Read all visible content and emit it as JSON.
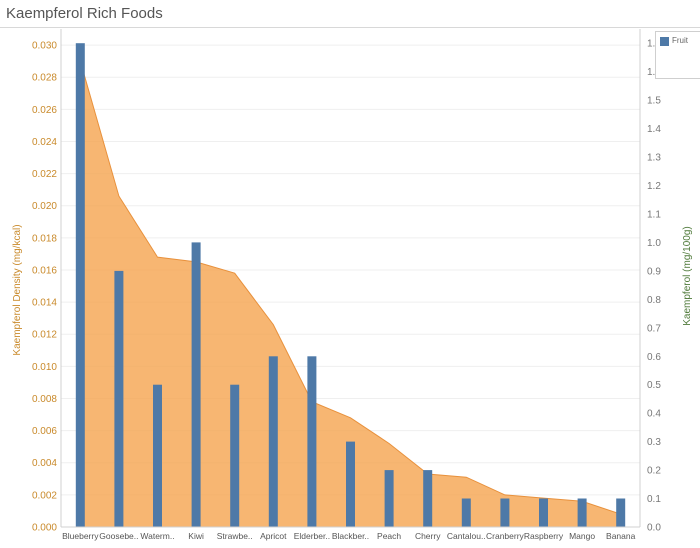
{
  "chart_data": {
    "type": "bar",
    "title": "Kaempferol Rich Foods",
    "categories": [
      "Blueberry",
      "Goosebe..",
      "Waterm..",
      "Kiwi",
      "Strawbe..",
      "Apricot",
      "Elderber..",
      "Blackber..",
      "Peach",
      "Cherry",
      "Cantalou..",
      "Cranberry",
      "Raspberry",
      "Mango",
      "Banana"
    ],
    "ylabel_left": "Kaempferol Density (mg/kcal)",
    "ylabel_right": "Kaempferol (mg/100g)",
    "ylim_left": [
      0,
      0.031
    ],
    "ylim_right": [
      0,
      1.75
    ],
    "yticks_left": [
      "0.000",
      "0.002",
      "0.004",
      "0.006",
      "0.008",
      "0.010",
      "0.012",
      "0.014",
      "0.016",
      "0.018",
      "0.020",
      "0.022",
      "0.024",
      "0.026",
      "0.028",
      "0.030"
    ],
    "yticks_right": [
      "0.0",
      "0.1",
      "0.2",
      "0.3",
      "0.4",
      "0.5",
      "0.6",
      "0.7",
      "0.8",
      "0.9",
      "1.0",
      "1.1",
      "1.2",
      "1.3",
      "1.4",
      "1.5",
      "1.6",
      "1.7"
    ],
    "series": [
      {
        "name": "Fruit",
        "type": "bar",
        "axis": "right",
        "color": "#4e79a7",
        "values": [
          1.7,
          0.9,
          0.5,
          1.0,
          0.5,
          0.6,
          0.6,
          0.3,
          0.2,
          0.2,
          0.1,
          0.1,
          0.1,
          0.1,
          0.1
        ]
      },
      {
        "type": "area",
        "axis": "left",
        "color": "#f5a14a",
        "values": [
          0.029,
          0.0206,
          0.0168,
          0.0165,
          0.0158,
          0.0126,
          0.0078,
          0.0068,
          0.0052,
          0.0033,
          0.0031,
          0.002,
          0.0018,
          0.0016,
          0.0008
        ]
      }
    ],
    "legend": {
      "position": "top-right",
      "label": "Fruit"
    },
    "grid": true
  }
}
